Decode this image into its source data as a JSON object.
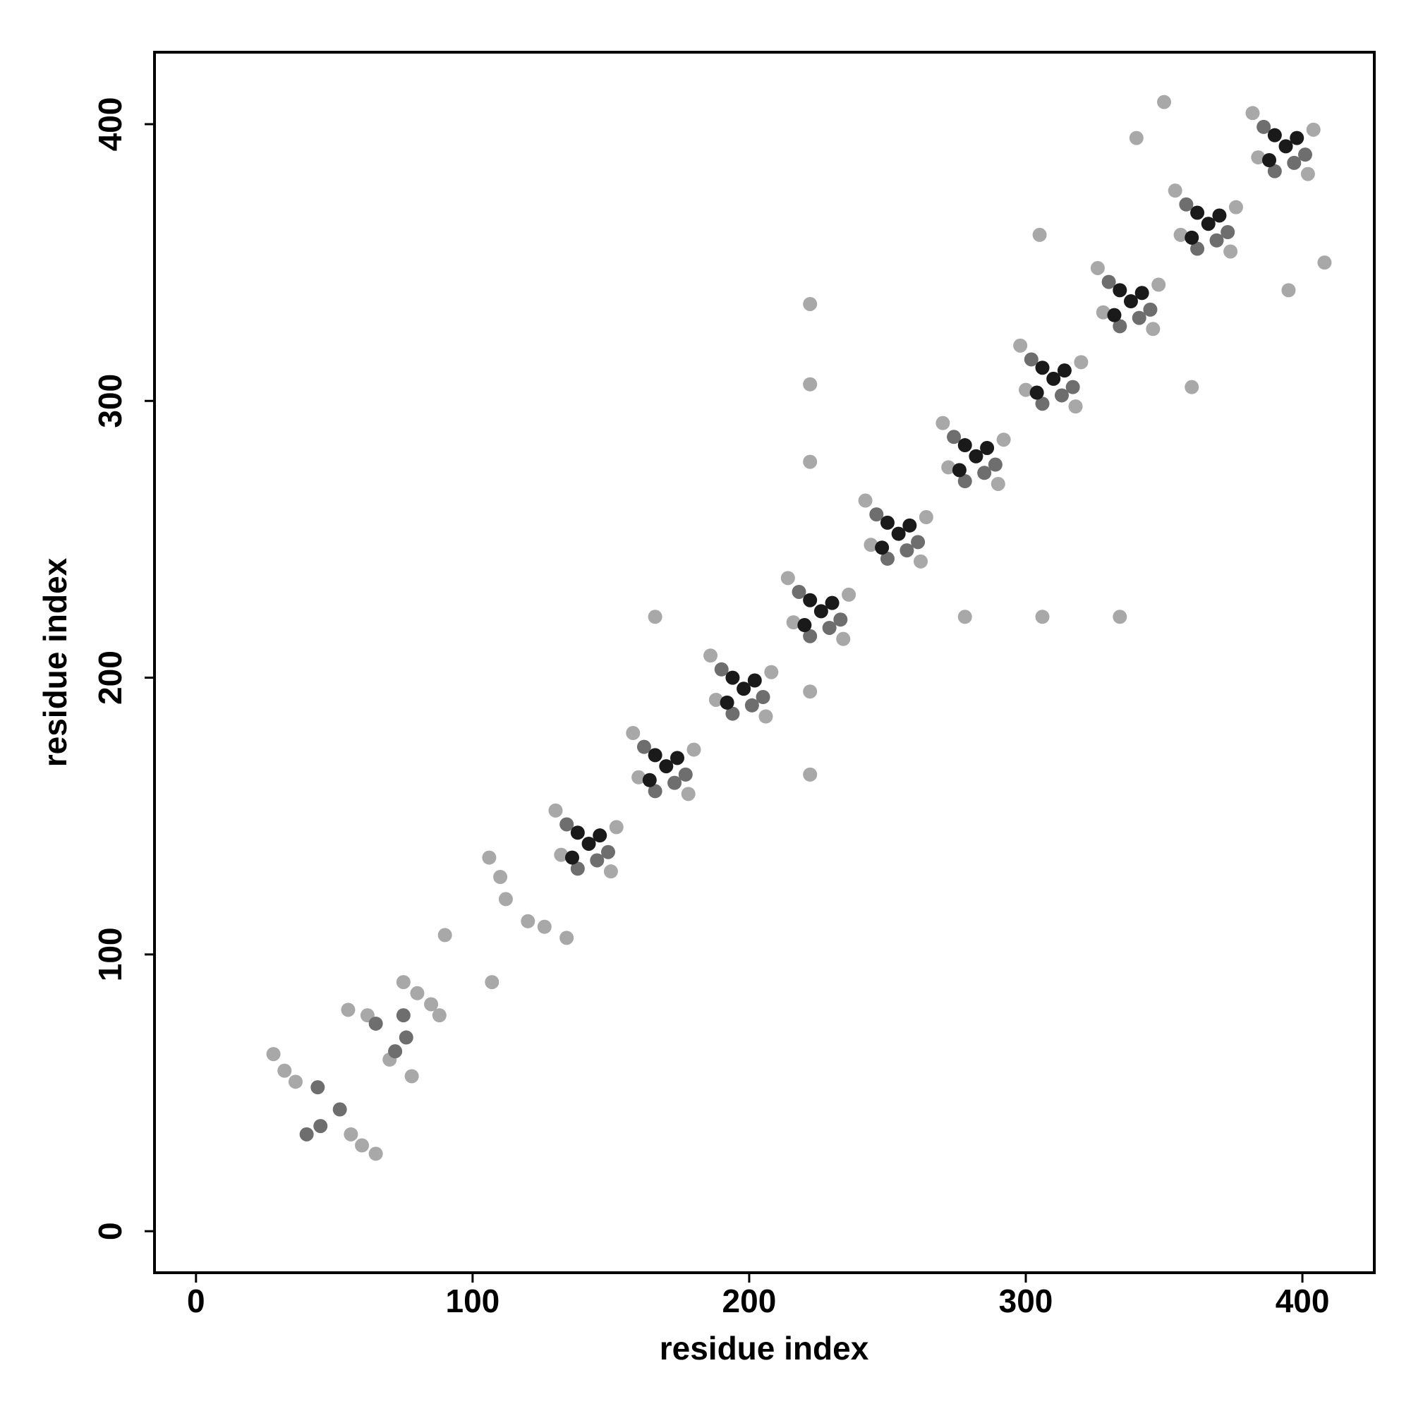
{
  "chart_data": {
    "type": "scatter",
    "x_label": "residue index",
    "y_label": "residue index",
    "xlim": [
      -15,
      426
    ],
    "ylim": [
      -15,
      426
    ],
    "xticks": [
      0,
      100,
      200,
      300,
      400
    ],
    "yticks": [
      0,
      100,
      200,
      300,
      400
    ],
    "series": [
      {
        "color": "#a8a8a8",
        "x": [
          130,
          150,
          132,
          152,
          158,
          178,
          160,
          180,
          186,
          206,
          188,
          208,
          214,
          234,
          216,
          236,
          242,
          262,
          244,
          264,
          270,
          290,
          272,
          292,
          298,
          318,
          300,
          320,
          326,
          346,
          328,
          348,
          354,
          374,
          356,
          376,
          382,
          402,
          384,
          404,
          28,
          32,
          36,
          56,
          60,
          65,
          55,
          62,
          70,
          78,
          75,
          80,
          85,
          88,
          106,
          110,
          112,
          107,
          90,
          120,
          126,
          134,
          222,
          222,
          222,
          222,
          222,
          166,
          278,
          306,
          334,
          305,
          360,
          340,
          395,
          350,
          408
        ],
        "y": [
          152,
          130,
          136,
          146,
          180,
          158,
          164,
          174,
          208,
          186,
          192,
          202,
          236,
          214,
          220,
          230,
          264,
          242,
          248,
          258,
          292,
          270,
          276,
          286,
          320,
          298,
          304,
          314,
          348,
          326,
          332,
          342,
          376,
          354,
          360,
          370,
          404,
          382,
          388,
          398,
          64,
          58,
          54,
          35,
          31,
          28,
          80,
          78,
          62,
          56,
          90,
          86,
          82,
          78,
          135,
          128,
          120,
          90,
          107,
          112,
          110,
          106,
          335,
          306,
          278,
          165,
          195,
          222,
          222,
          222,
          222,
          360,
          305,
          395,
          340,
          408,
          350
        ]
      },
      {
        "color": "#6e6e6e",
        "x": [
          134,
          145,
          149,
          138,
          162,
          173,
          177,
          166,
          190,
          201,
          205,
          194,
          218,
          229,
          233,
          222,
          246,
          257,
          261,
          250,
          274,
          285,
          289,
          278,
          302,
          313,
          317,
          306,
          330,
          341,
          345,
          334,
          358,
          369,
          373,
          362,
          386,
          397,
          401,
          390,
          44,
          52,
          40,
          45,
          65,
          72,
          75,
          76
        ],
        "y": [
          147,
          134,
          137,
          131,
          175,
          162,
          165,
          159,
          203,
          190,
          193,
          187,
          231,
          218,
          221,
          215,
          259,
          246,
          249,
          243,
          287,
          274,
          277,
          271,
          315,
          302,
          305,
          299,
          343,
          330,
          333,
          327,
          371,
          358,
          361,
          355,
          399,
          386,
          389,
          383,
          52,
          44,
          35,
          38,
          75,
          65,
          78,
          70
        ]
      },
      {
        "color": "#1a1a1a",
        "x": [
          138,
          142,
          146,
          136,
          166,
          170,
          174,
          164,
          194,
          198,
          202,
          192,
          222,
          226,
          230,
          220,
          250,
          254,
          258,
          248,
          278,
          282,
          286,
          276,
          306,
          310,
          314,
          304,
          334,
          338,
          342,
          332,
          362,
          366,
          370,
          360,
          390,
          394,
          398,
          388
        ],
        "y": [
          144,
          140,
          143,
          135,
          172,
          168,
          171,
          163,
          200,
          196,
          199,
          191,
          228,
          224,
          227,
          219,
          256,
          252,
          255,
          247,
          284,
          280,
          283,
          275,
          312,
          308,
          311,
          303,
          340,
          336,
          339,
          331,
          368,
          364,
          367,
          359,
          396,
          392,
          395,
          387
        ]
      }
    ]
  }
}
